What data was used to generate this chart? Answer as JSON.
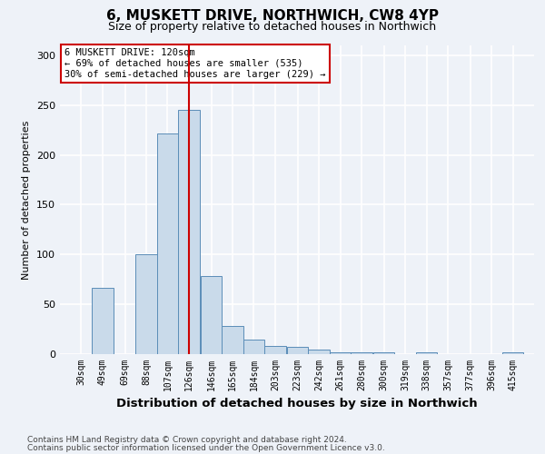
{
  "title": "6, MUSKETT DRIVE, NORTHWICH, CW8 4YP",
  "subtitle": "Size of property relative to detached houses in Northwich",
  "xlabel": "Distribution of detached houses by size in Northwich",
  "ylabel": "Number of detached properties",
  "bin_labels": [
    "30sqm",
    "49sqm",
    "69sqm",
    "88sqm",
    "107sqm",
    "126sqm",
    "146sqm",
    "165sqm",
    "184sqm",
    "203sqm",
    "223sqm",
    "242sqm",
    "261sqm",
    "280sqm",
    "300sqm",
    "319sqm",
    "338sqm",
    "357sqm",
    "377sqm",
    "396sqm",
    "415sqm"
  ],
  "bin_centers": [
    30,
    49,
    69,
    88,
    107,
    126,
    146,
    165,
    184,
    203,
    223,
    242,
    261,
    280,
    300,
    319,
    338,
    357,
    377,
    396,
    415
  ],
  "bar_heights": [
    0,
    67,
    0,
    100,
    222,
    245,
    78,
    28,
    15,
    8,
    7,
    5,
    2,
    2,
    2,
    0,
    2,
    0,
    0,
    0,
    2
  ],
  "bar_color": "#c9daea",
  "bar_edge_color": "#5b8db8",
  "vline_x": 126,
  "vline_color": "#cc0000",
  "annotation_title": "6 MUSKETT DRIVE: 120sqm",
  "annotation_line1": "← 69% of detached houses are smaller (535)",
  "annotation_line2": "30% of semi-detached houses are larger (229) →",
  "annotation_box_color": "#ffffff",
  "annotation_box_edge": "#cc0000",
  "ylim": [
    0,
    310
  ],
  "yticks": [
    0,
    50,
    100,
    150,
    200,
    250,
    300
  ],
  "footer1": "Contains HM Land Registry data © Crown copyright and database right 2024.",
  "footer2": "Contains public sector information licensed under the Open Government Licence v3.0.",
  "bg_color": "#eef2f8",
  "plot_bg_color": "#eef2f8",
  "grid_color": "#ffffff",
  "title_fontsize": 11,
  "subtitle_fontsize": 9,
  "xlabel_fontsize": 9.5,
  "ylabel_fontsize": 8,
  "tick_fontsize": 7,
  "footer_fontsize": 6.5
}
